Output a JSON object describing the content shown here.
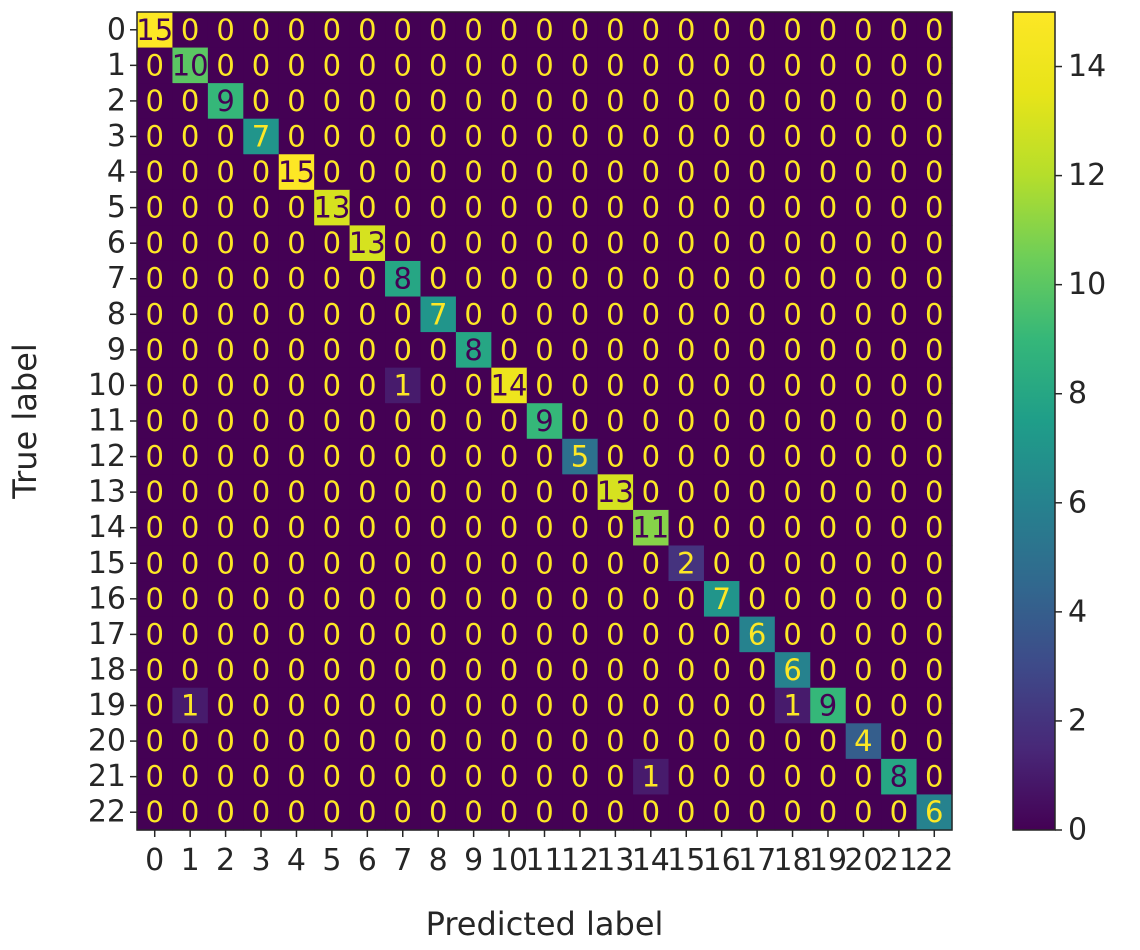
{
  "chart_data": {
    "type": "heatmap",
    "title": "",
    "xlabel": "Predicted label",
    "ylabel": "True label",
    "x_tick_labels": [
      "0",
      "1",
      "2",
      "3",
      "4",
      "5",
      "6",
      "7",
      "8",
      "9",
      "10",
      "11",
      "12",
      "13",
      "14",
      "15",
      "16",
      "17",
      "18",
      "19",
      "20",
      "21",
      "22"
    ],
    "y_tick_labels": [
      "0",
      "1",
      "2",
      "3",
      "4",
      "5",
      "6",
      "7",
      "8",
      "9",
      "10",
      "11",
      "12",
      "13",
      "14",
      "15",
      "16",
      "17",
      "18",
      "19",
      "20",
      "21",
      "22"
    ],
    "matrix": [
      [
        15,
        0,
        0,
        0,
        0,
        0,
        0,
        0,
        0,
        0,
        0,
        0,
        0,
        0,
        0,
        0,
        0,
        0,
        0,
        0,
        0,
        0,
        0
      ],
      [
        0,
        10,
        0,
        0,
        0,
        0,
        0,
        0,
        0,
        0,
        0,
        0,
        0,
        0,
        0,
        0,
        0,
        0,
        0,
        0,
        0,
        0,
        0
      ],
      [
        0,
        0,
        9,
        0,
        0,
        0,
        0,
        0,
        0,
        0,
        0,
        0,
        0,
        0,
        0,
        0,
        0,
        0,
        0,
        0,
        0,
        0,
        0
      ],
      [
        0,
        0,
        0,
        7,
        0,
        0,
        0,
        0,
        0,
        0,
        0,
        0,
        0,
        0,
        0,
        0,
        0,
        0,
        0,
        0,
        0,
        0,
        0
      ],
      [
        0,
        0,
        0,
        0,
        15,
        0,
        0,
        0,
        0,
        0,
        0,
        0,
        0,
        0,
        0,
        0,
        0,
        0,
        0,
        0,
        0,
        0,
        0
      ],
      [
        0,
        0,
        0,
        0,
        0,
        13,
        0,
        0,
        0,
        0,
        0,
        0,
        0,
        0,
        0,
        0,
        0,
        0,
        0,
        0,
        0,
        0,
        0
      ],
      [
        0,
        0,
        0,
        0,
        0,
        0,
        13,
        0,
        0,
        0,
        0,
        0,
        0,
        0,
        0,
        0,
        0,
        0,
        0,
        0,
        0,
        0,
        0
      ],
      [
        0,
        0,
        0,
        0,
        0,
        0,
        0,
        8,
        0,
        0,
        0,
        0,
        0,
        0,
        0,
        0,
        0,
        0,
        0,
        0,
        0,
        0,
        0
      ],
      [
        0,
        0,
        0,
        0,
        0,
        0,
        0,
        0,
        7,
        0,
        0,
        0,
        0,
        0,
        0,
        0,
        0,
        0,
        0,
        0,
        0,
        0,
        0
      ],
      [
        0,
        0,
        0,
        0,
        0,
        0,
        0,
        0,
        0,
        8,
        0,
        0,
        0,
        0,
        0,
        0,
        0,
        0,
        0,
        0,
        0,
        0,
        0
      ],
      [
        0,
        0,
        0,
        0,
        0,
        0,
        0,
        1,
        0,
        0,
        14,
        0,
        0,
        0,
        0,
        0,
        0,
        0,
        0,
        0,
        0,
        0,
        0
      ],
      [
        0,
        0,
        0,
        0,
        0,
        0,
        0,
        0,
        0,
        0,
        0,
        9,
        0,
        0,
        0,
        0,
        0,
        0,
        0,
        0,
        0,
        0,
        0
      ],
      [
        0,
        0,
        0,
        0,
        0,
        0,
        0,
        0,
        0,
        0,
        0,
        0,
        5,
        0,
        0,
        0,
        0,
        0,
        0,
        0,
        0,
        0,
        0
      ],
      [
        0,
        0,
        0,
        0,
        0,
        0,
        0,
        0,
        0,
        0,
        0,
        0,
        0,
        13,
        0,
        0,
        0,
        0,
        0,
        0,
        0,
        0,
        0
      ],
      [
        0,
        0,
        0,
        0,
        0,
        0,
        0,
        0,
        0,
        0,
        0,
        0,
        0,
        0,
        11,
        0,
        0,
        0,
        0,
        0,
        0,
        0,
        0
      ],
      [
        0,
        0,
        0,
        0,
        0,
        0,
        0,
        0,
        0,
        0,
        0,
        0,
        0,
        0,
        0,
        2,
        0,
        0,
        0,
        0,
        0,
        0,
        0
      ],
      [
        0,
        0,
        0,
        0,
        0,
        0,
        0,
        0,
        0,
        0,
        0,
        0,
        0,
        0,
        0,
        0,
        7,
        0,
        0,
        0,
        0,
        0,
        0
      ],
      [
        0,
        0,
        0,
        0,
        0,
        0,
        0,
        0,
        0,
        0,
        0,
        0,
        0,
        0,
        0,
        0,
        0,
        6,
        0,
        0,
        0,
        0,
        0
      ],
      [
        0,
        0,
        0,
        0,
        0,
        0,
        0,
        0,
        0,
        0,
        0,
        0,
        0,
        0,
        0,
        0,
        0,
        0,
        6,
        0,
        0,
        0,
        0
      ],
      [
        0,
        1,
        0,
        0,
        0,
        0,
        0,
        0,
        0,
        0,
        0,
        0,
        0,
        0,
        0,
        0,
        0,
        0,
        1,
        9,
        0,
        0,
        0
      ],
      [
        0,
        0,
        0,
        0,
        0,
        0,
        0,
        0,
        0,
        0,
        0,
        0,
        0,
        0,
        0,
        0,
        0,
        0,
        0,
        0,
        4,
        0,
        0
      ],
      [
        0,
        0,
        0,
        0,
        0,
        0,
        0,
        0,
        0,
        0,
        0,
        0,
        0,
        0,
        1,
        0,
        0,
        0,
        0,
        0,
        0,
        8,
        0
      ],
      [
        0,
        0,
        0,
        0,
        0,
        0,
        0,
        0,
        0,
        0,
        0,
        0,
        0,
        0,
        0,
        0,
        0,
        0,
        0,
        0,
        0,
        0,
        6
      ]
    ],
    "colormap": "viridis",
    "color_range": [
      0,
      15
    ],
    "colorbar_ticks": [
      0,
      2,
      4,
      6,
      8,
      10,
      12,
      14
    ],
    "text_colors": {
      "low_value": "#fde725",
      "high_value": "#440154"
    },
    "grid": false,
    "legend": "colorbar-right"
  }
}
